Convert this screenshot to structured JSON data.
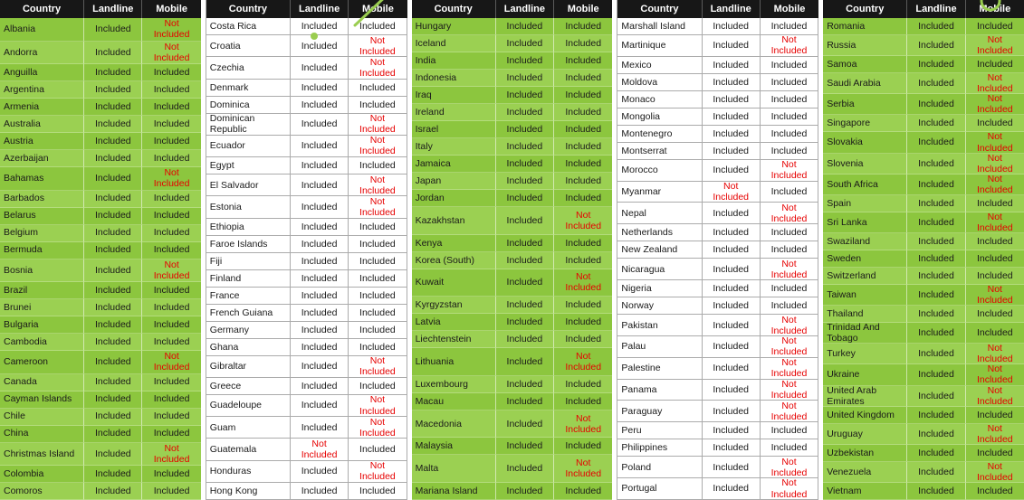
{
  "columns": [
    "Country",
    "Landline",
    "Mobile"
  ],
  "status_colors": {
    "included": "#1a1a1a",
    "not_included": "#e60000"
  },
  "accent_green": "#8cc63e",
  "tables": [
    {
      "style": "green",
      "rows": [
        [
          "Albania",
          "Included",
          "Not Included"
        ],
        [
          "Andorra",
          "Included",
          "Not Included"
        ],
        [
          "Anguilla",
          "Included",
          "Included"
        ],
        [
          "Argentina",
          "Included",
          "Included"
        ],
        [
          "Armenia",
          "Included",
          "Included"
        ],
        [
          "Australia",
          "Included",
          "Included"
        ],
        [
          "Austria",
          "Included",
          "Included"
        ],
        [
          "Azerbaijan",
          "Included",
          "Included"
        ],
        [
          "Bahamas",
          "Included",
          "Not Included"
        ],
        [
          "Barbados",
          "Included",
          "Included"
        ],
        [
          "Belarus",
          "Included",
          "Included"
        ],
        [
          "Belgium",
          "Included",
          "Included"
        ],
        [
          "Bermuda",
          "Included",
          "Included"
        ],
        [
          "Bosnia",
          "Included",
          "Not Included"
        ],
        [
          "Brazil",
          "Included",
          "Included"
        ],
        [
          "Brunei",
          "Included",
          "Included"
        ],
        [
          "Bulgaria",
          "Included",
          "Included"
        ],
        [
          "Cambodia",
          "Included",
          "Included"
        ],
        [
          "Cameroon",
          "Included",
          "Not Included"
        ],
        [
          "Canada",
          "Included",
          "Included"
        ],
        [
          "Cayman Islands",
          "Included",
          "Included"
        ],
        [
          "Chile",
          "Included",
          "Included"
        ],
        [
          "China",
          "Included",
          "Included"
        ],
        [
          "Christmas Island",
          "Included",
          "Not Included"
        ],
        [
          "Colombia",
          "Included",
          "Included"
        ],
        [
          "Comoros",
          "Included",
          "Included"
        ]
      ]
    },
    {
      "style": "white",
      "rows": [
        [
          "Costa Rica",
          "Included",
          "Included"
        ],
        [
          "Croatia",
          "Included",
          "Not Included"
        ],
        [
          "Czechia",
          "Included",
          "Not Included"
        ],
        [
          "Denmark",
          "Included",
          "Included"
        ],
        [
          "Dominica",
          "Included",
          "Included"
        ],
        [
          "Dominican Republic",
          "Included",
          "Not Included"
        ],
        [
          "Ecuador",
          "Included",
          "Not Included"
        ],
        [
          "Egypt",
          "Included",
          "Included"
        ],
        [
          "El Salvador",
          "Included",
          "Not Included"
        ],
        [
          "Estonia",
          "Included",
          "Not Included"
        ],
        [
          "Ethiopia",
          "Included",
          "Included"
        ],
        [
          "Faroe Islands",
          "Included",
          "Included"
        ],
        [
          "Fiji",
          "Included",
          "Included"
        ],
        [
          "Finland",
          "Included",
          "Included"
        ],
        [
          "France",
          "Included",
          "Included"
        ],
        [
          "French Guiana",
          "Included",
          "Included"
        ],
        [
          "Germany",
          "Included",
          "Included"
        ],
        [
          "Ghana",
          "Included",
          "Included"
        ],
        [
          "Gibraltar",
          "Included",
          "Not Included"
        ],
        [
          "Greece",
          "Included",
          "Included"
        ],
        [
          "Guadeloupe",
          "Included",
          "Not Included"
        ],
        [
          "Guam",
          "Included",
          "Not Included"
        ],
        [
          "Guatemala",
          "Not Included",
          "Included"
        ],
        [
          "Honduras",
          "Included",
          "Not Included"
        ],
        [
          "Hong Kong",
          "Included",
          "Included"
        ]
      ]
    },
    {
      "style": "green",
      "rows": [
        [
          "Hungary",
          "Included",
          "Included"
        ],
        [
          "Iceland",
          "Included",
          "Included"
        ],
        [
          "India",
          "Included",
          "Included"
        ],
        [
          "Indonesia",
          "Included",
          "Included"
        ],
        [
          "Iraq",
          "Included",
          "Included"
        ],
        [
          "Ireland",
          "Included",
          "Included"
        ],
        [
          "Israel",
          "Included",
          "Included"
        ],
        [
          "Italy",
          "Included",
          "Included"
        ],
        [
          "Jamaica",
          "Included",
          "Included"
        ],
        [
          "Japan",
          "Included",
          "Included"
        ],
        [
          "Jordan",
          "Included",
          "Included"
        ],
        [
          "Kazakhstan",
          "Included",
          "Not Included"
        ],
        [
          "Kenya",
          "Included",
          "Included"
        ],
        [
          "Korea (South)",
          "Included",
          "Included"
        ],
        [
          "Kuwait",
          "Included",
          "Not Included"
        ],
        [
          "Kyrgyzstan",
          "Included",
          "Included"
        ],
        [
          "Latvia",
          "Included",
          "Included"
        ],
        [
          "Liechtenstein",
          "Included",
          "Included"
        ],
        [
          "Lithuania",
          "Included",
          "Not Included"
        ],
        [
          "Luxembourg",
          "Included",
          "Included"
        ],
        [
          "Macau",
          "Included",
          "Included"
        ],
        [
          "Macedonia",
          "Included",
          "Not Included"
        ],
        [
          "Malaysia",
          "Included",
          "Included"
        ],
        [
          "Malta",
          "Included",
          "Not Included"
        ],
        [
          "Mariana Island",
          "Included",
          "Included"
        ]
      ]
    },
    {
      "style": "white",
      "rows": [
        [
          "Marshall Island",
          "Included",
          "Included"
        ],
        [
          "Martinique",
          "Included",
          "Not Included"
        ],
        [
          "Mexico",
          "Included",
          "Included"
        ],
        [
          "Moldova",
          "Included",
          "Included"
        ],
        [
          "Monaco",
          "Included",
          "Included"
        ],
        [
          "Mongolia",
          "Included",
          "Included"
        ],
        [
          "Montenegro",
          "Included",
          "Included"
        ],
        [
          "Montserrat",
          "Included",
          "Included"
        ],
        [
          "Morocco",
          "Included",
          "Not Included"
        ],
        [
          "Myanmar",
          "Not Included",
          "Included"
        ],
        [
          "Nepal",
          "Included",
          "Not Included"
        ],
        [
          "Netherlands",
          "Included",
          "Included"
        ],
        [
          "New Zealand",
          "Included",
          "Included"
        ],
        [
          "Nicaragua",
          "Included",
          "Not Included"
        ],
        [
          "Nigeria",
          "Included",
          "Included"
        ],
        [
          "Norway",
          "Included",
          "Included"
        ],
        [
          "Pakistan",
          "Included",
          "Not Included"
        ],
        [
          "Palau",
          "Included",
          "Not Included"
        ],
        [
          "Palestine",
          "Included",
          "Not Included"
        ],
        [
          "Panama",
          "Included",
          "Not Included"
        ],
        [
          "Paraguay",
          "Included",
          "Not Included"
        ],
        [
          "Peru",
          "Included",
          "Included"
        ],
        [
          "Philippines",
          "Included",
          "Included"
        ],
        [
          "Poland",
          "Included",
          "Not Included"
        ],
        [
          "Portugal",
          "Included",
          "Not Included"
        ]
      ]
    },
    {
      "style": "green",
      "rows": [
        [
          "Romania",
          "Included",
          "Included"
        ],
        [
          "Russia",
          "Included",
          "Not Included"
        ],
        [
          "Samoa",
          "Included",
          "Included"
        ],
        [
          "Saudi Arabia",
          "Included",
          "Not Included"
        ],
        [
          "Serbia",
          "Included",
          "Not Included"
        ],
        [
          "Singapore",
          "Included",
          "Included"
        ],
        [
          "Slovakia",
          "Included",
          "Not Included"
        ],
        [
          "Slovenia",
          "Included",
          "Not Included"
        ],
        [
          "South Africa",
          "Included",
          "Not Included"
        ],
        [
          "Spain",
          "Included",
          "Included"
        ],
        [
          "Sri Lanka",
          "Included",
          "Not Included"
        ],
        [
          "Swaziland",
          "Included",
          "Included"
        ],
        [
          "Sweden",
          "Included",
          "Included"
        ],
        [
          "Switzerland",
          "Included",
          "Included"
        ],
        [
          "Taiwan",
          "Included",
          "Not Included"
        ],
        [
          "Thailand",
          "Included",
          "Included"
        ],
        [
          "Trinidad And Tobago",
          "Included",
          "Included"
        ],
        [
          "Turkey",
          "Included",
          "Not Included"
        ],
        [
          "Ukraine",
          "Included",
          "Not Included"
        ],
        [
          "United Arab Emirates",
          "Included",
          "Not Included"
        ],
        [
          "United Kingdom",
          "Included",
          "Included"
        ],
        [
          "Uruguay",
          "Included",
          "Not Included"
        ],
        [
          "Uzbekistan",
          "Included",
          "Included"
        ],
        [
          "Venezuela",
          "Included",
          "Not Included"
        ],
        [
          "Vietnam",
          "Included",
          "Included"
        ]
      ]
    }
  ]
}
